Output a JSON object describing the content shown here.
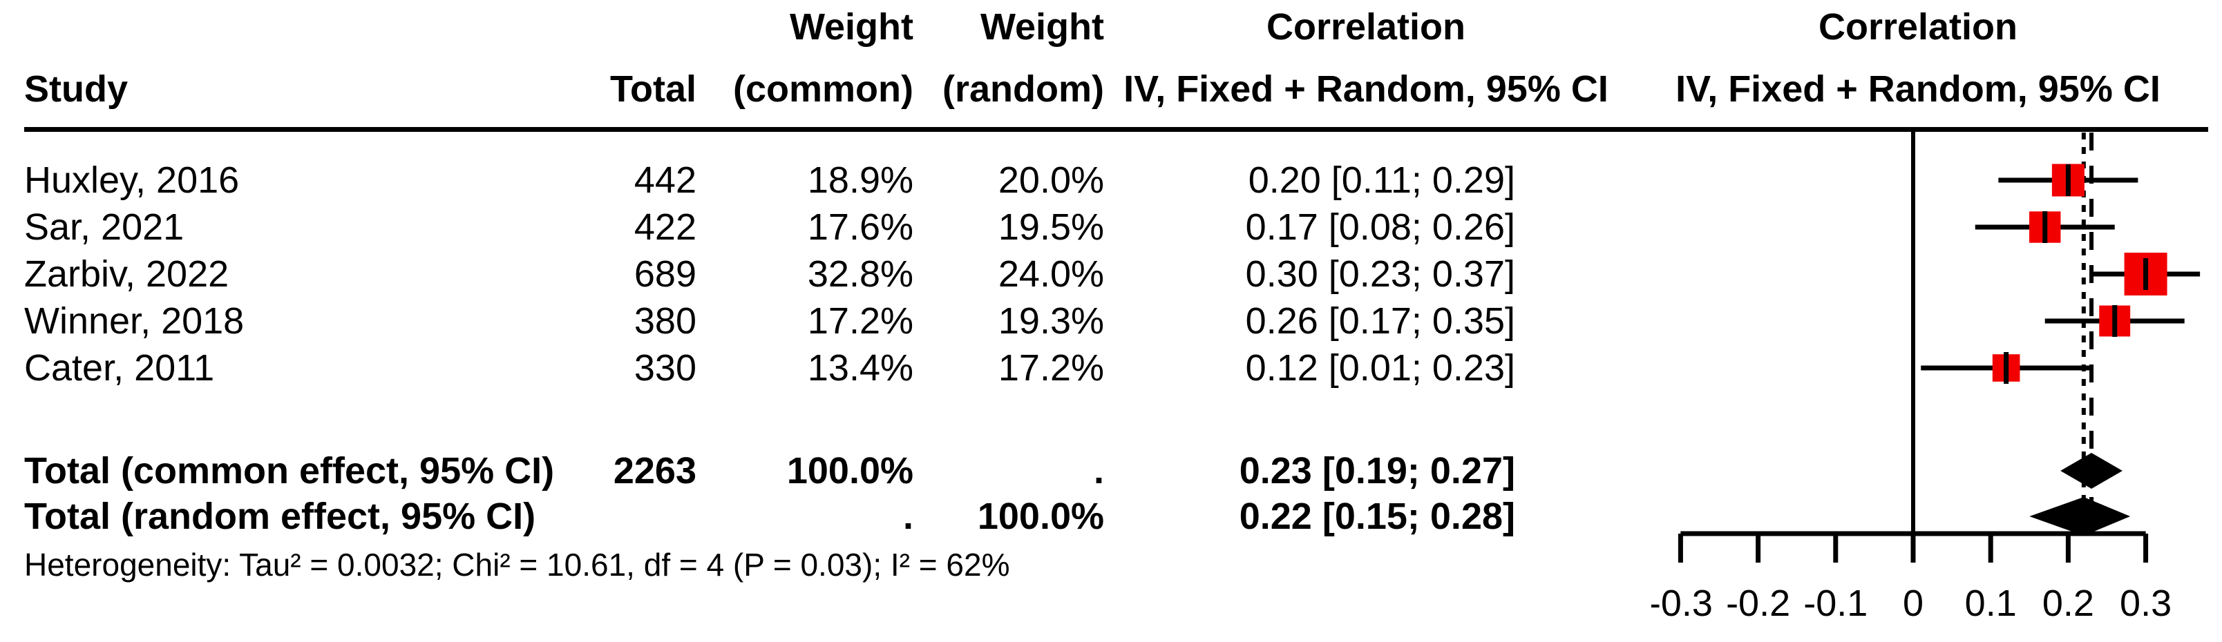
{
  "table": {
    "header_row1": {
      "weight_common": "Weight",
      "weight_random": "Weight",
      "correlation": "Correlation",
      "plot_correlation": "Correlation"
    },
    "header_row2": {
      "study": "Study",
      "total": "Total",
      "weight_common": "(common)",
      "weight_random": "(random)",
      "correlation": "IV, Fixed + Random, 95% CI",
      "plot_correlation": "IV, Fixed + Random, 95% CI"
    },
    "heterogeneity": "Heterogeneity: Tau² = 0.0032; Chi² = 10.61, df = 4 (P = 0.03); I² = 62%"
  },
  "chart_data": {
    "type": "forest",
    "effect_measure": "Correlation",
    "model": "IV, Fixed + Random, 95% CI",
    "xlim": [
      -0.3,
      0.3
    ],
    "axis_ticks": [
      -0.3,
      -0.2,
      -0.1,
      0,
      0.1,
      0.2,
      0.3
    ],
    "axis_tick_labels": [
      "-0.3",
      "-0.2",
      "-0.1",
      "0",
      "0.1",
      "0.2",
      "0.3"
    ],
    "reference_line": 0,
    "dashed_lines": [
      {
        "value": 0.22,
        "style": "short-dash",
        "name": "random-effect-line"
      },
      {
        "value": 0.23,
        "style": "long-dash",
        "name": "common-effect-line"
      }
    ],
    "marker_color": "#f20000",
    "line_color": "#000000",
    "studies": [
      {
        "name": "Huxley, 2016",
        "total": 442,
        "weight_common": "18.9%",
        "weight_random": "20.0%",
        "weight_common_value": 18.9,
        "estimate": 0.2,
        "ci_low": 0.11,
        "ci_high": 0.29,
        "label": "0.20 [0.11; 0.29]"
      },
      {
        "name": "Sar, 2021",
        "total": 422,
        "weight_common": "17.6%",
        "weight_random": "19.5%",
        "weight_common_value": 17.6,
        "estimate": 0.17,
        "ci_low": 0.08,
        "ci_high": 0.26,
        "label": "0.17 [0.08; 0.26]"
      },
      {
        "name": "Zarbiv, 2022",
        "total": 689,
        "weight_common": "32.8%",
        "weight_random": "24.0%",
        "weight_common_value": 32.8,
        "estimate": 0.3,
        "ci_low": 0.23,
        "ci_high": 0.37,
        "label": "0.30 [0.23; 0.37]"
      },
      {
        "name": "Winner, 2018",
        "total": 380,
        "weight_common": "17.2%",
        "weight_random": "19.3%",
        "weight_common_value": 17.2,
        "estimate": 0.26,
        "ci_low": 0.17,
        "ci_high": 0.35,
        "label": "0.26 [0.17; 0.35]"
      },
      {
        "name": "Cater, 2011",
        "total": 330,
        "weight_common": "13.4%",
        "weight_random": "17.2%",
        "weight_common_value": 13.4,
        "estimate": 0.12,
        "ci_low": 0.01,
        "ci_high": 0.23,
        "label": "0.12 [0.01; 0.23]"
      }
    ],
    "totals": [
      {
        "name": "Total (common effect, 95% CI)",
        "total": "2263",
        "weight_common": "100.0%",
        "weight_random": ".",
        "estimate": 0.23,
        "ci_low": 0.19,
        "ci_high": 0.27,
        "label": "0.23 [0.19; 0.27]"
      },
      {
        "name": "Total (random effect, 95% CI)",
        "total": "",
        "weight_common": ".",
        "weight_random": "100.0%",
        "estimate": 0.22,
        "ci_low": 0.15,
        "ci_high": 0.28,
        "label": "0.22 [0.15; 0.28]"
      }
    ]
  }
}
